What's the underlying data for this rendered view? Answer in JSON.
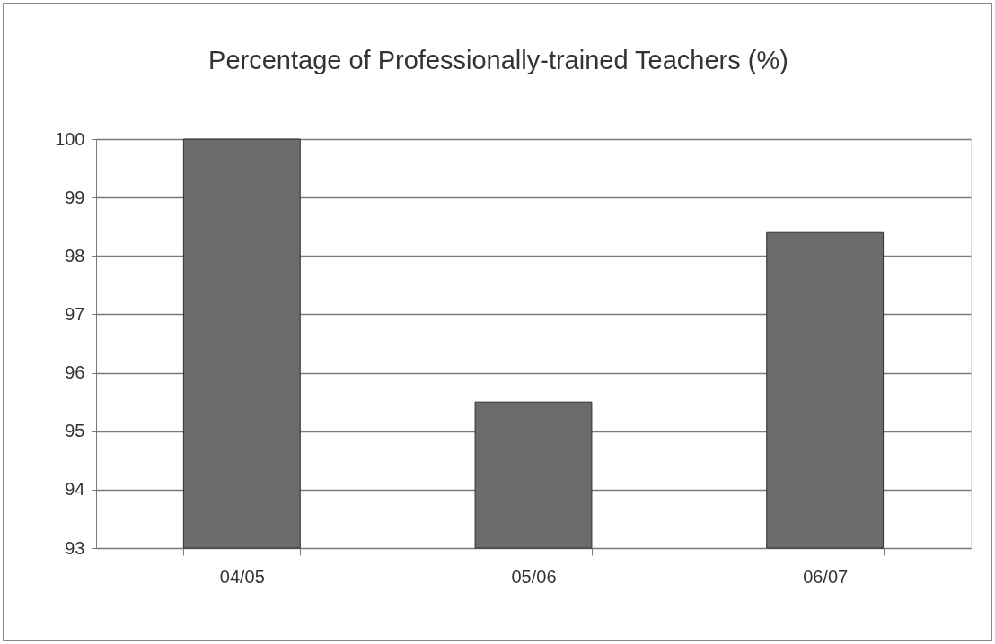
{
  "chart_data": {
    "type": "bar",
    "title": "Percentage of Professionally-trained Teachers (%)",
    "categories": [
      "04/05",
      "05/06",
      "06/07"
    ],
    "values": [
      100,
      95.5,
      98.4
    ],
    "color": "#6b6b6b",
    "ylim": [
      93,
      100
    ],
    "yticks": [
      93,
      94,
      95,
      96,
      97,
      98,
      99,
      100
    ],
    "grid": "y"
  }
}
